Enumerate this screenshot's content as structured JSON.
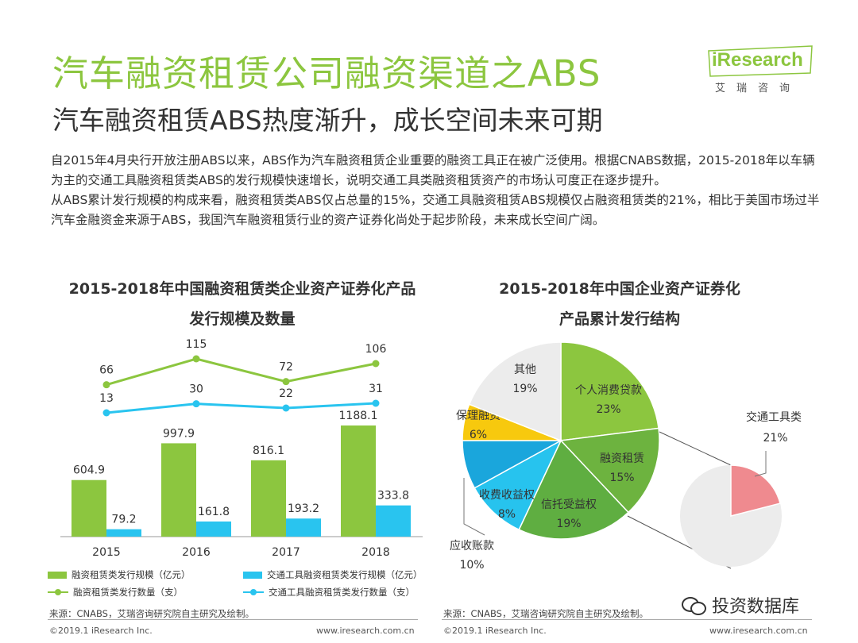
{
  "header": {
    "title": "汽车融资租赁公司融资渠道之ABS",
    "subtitle": "汽车融资租赁ABS热度渐升，成长空间未来可期",
    "logo_text": "iResearch",
    "logo_sub": "艾瑞咨询"
  },
  "description": {
    "para1": "自2015年4月央行开放注册ABS以来，ABS作为汽车融资租赁企业重要的融资工具正在被广泛使用。根据CNABS数据，2015-2018年以车辆为主的交通工具融资租赁类ABS的发行规模快速增长，说明交通工具类融资租赁资产的市场认可度正在逐步提升。",
    "para2": "从ABS累计发行规模的构成来看，融资租赁类ABS仅占总量的15%，交通工具融资租赁ABS规模仅占融资租赁类的21%，相比于美国市场过半汽车金融资金来源于ABS，我国汽车融资租赁行业的资产证券化尚处于起步阶段，未来成长空间广阔。"
  },
  "colors": {
    "green": "#8cc63f",
    "cyan": "#29c4ef",
    "pie_green": "#8cc63f",
    "pie_dark_green": "#6db33f",
    "pie_cyan": "#27c3ee",
    "pie_blue": "#1aa6dc",
    "pie_yellow": "#f7c90e",
    "pie_gray": "#ececec",
    "pie_pink": "#ef8a8f"
  },
  "chart_data": [
    {
      "type": "bar",
      "title_line1": "2015-2018年中国融资租赁类企业资产证券化产品",
      "title_line2": "发行规模及数量",
      "categories": [
        "2015",
        "2016",
        "2017",
        "2018"
      ],
      "series": [
        {
          "name": "融资租赁类发行规模（亿元）",
          "kind": "bar",
          "color": "#8cc63f",
          "values": [
            604.9,
            997.9,
            816.1,
            1188.1
          ]
        },
        {
          "name": "交通工具融资租赁类发行规模（亿元）",
          "kind": "bar",
          "color": "#29c4ef",
          "values": [
            79.2,
            161.8,
            193.2,
            333.8
          ]
        },
        {
          "name": "融资租赁类发行数量（支）",
          "kind": "line",
          "color": "#8cc63f",
          "values": [
            66,
            115,
            72,
            106
          ]
        },
        {
          "name": "交通工具融资租赁类发行数量（支）",
          "kind": "line",
          "color": "#29c4ef",
          "values": [
            13,
            30,
            22,
            31
          ]
        }
      ],
      "source": "来源：CNABS，艾瑞咨询研究院自主研究及绘制。"
    },
    {
      "type": "pie",
      "title_line1": "2015-2018年中国企业资产证券化",
      "title_line2": "产品累计发行结构",
      "slices": [
        {
          "label": "个人消费贷款",
          "value": 23,
          "pct": "23%",
          "color": "#8cc63f"
        },
        {
          "label": "融资租赁",
          "value": 15,
          "pct": "15%",
          "color": "#6db33f"
        },
        {
          "label": "信托受益权",
          "value": 19,
          "pct": "19%",
          "color": "#5fae41"
        },
        {
          "label": "应收账款",
          "value": 10,
          "pct": "10%",
          "color": "#27c3ee"
        },
        {
          "label": "收费收益权",
          "value": 8,
          "pct": "8%",
          "color": "#1aa6dc"
        },
        {
          "label": "保理融资",
          "value": 6,
          "pct": "6%",
          "color": "#f7c90e"
        },
        {
          "label": "其他",
          "value": 19,
          "pct": "19%",
          "color": "#ececec"
        }
      ],
      "sub_pie": {
        "label": "交通工具类",
        "value": 21,
        "pct": "21%",
        "color": "#ef8a8f",
        "rest_color": "#ececec"
      },
      "source": "来源：CNABS，艾瑞咨询研究院自主研究及绘制。"
    }
  ],
  "footer": {
    "copyright_left": "©2019.1 iResearch Inc.",
    "url_left": "www.iresearch.com.cn",
    "copyright_right": "©2019.1 iResearch Inc.",
    "url_right": "www.iresearch.com.cn",
    "wechat_label": "投资数据库"
  }
}
